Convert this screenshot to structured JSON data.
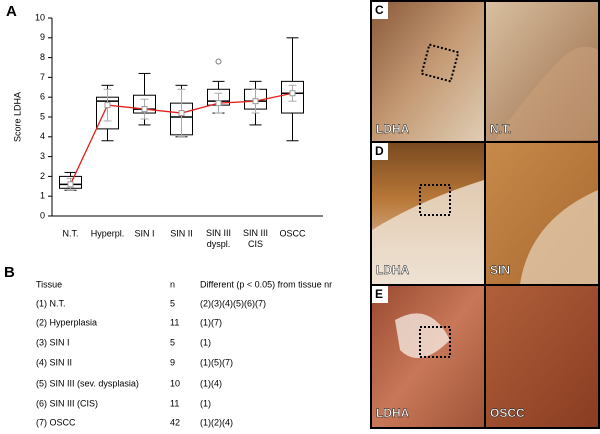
{
  "chart_data": {
    "type": "box",
    "panel": "A",
    "y_label": "Score LDHA",
    "categories": [
      "N.T.",
      "Hyperpl.",
      "SIN I",
      "SIN II",
      "SIN III\ndyspl.",
      "SIN III\nCIS",
      "OSCC"
    ],
    "min": [
      1.3,
      3.8,
      4.6,
      4.0,
      5.2,
      4.6,
      3.8
    ],
    "q1": [
      1.4,
      4.4,
      5.2,
      4.1,
      5.6,
      5.4,
      5.2
    ],
    "median": [
      1.6,
      5.8,
      5.4,
      5.0,
      5.8,
      5.8,
      6.2
    ],
    "q3": [
      2.0,
      6.0,
      6.1,
      5.7,
      6.4,
      6.4,
      6.8
    ],
    "max": [
      2.2,
      6.6,
      7.2,
      6.6,
      6.8,
      6.8,
      9.0
    ],
    "mean": [
      1.6,
      5.6,
      5.4,
      5.2,
      5.7,
      5.8,
      6.2
    ],
    "mean_error": [
      0.3,
      0.8,
      0.5,
      1.2,
      0.5,
      0.6,
      0.4
    ],
    "outliers": [
      [],
      [],
      [],
      [],
      [
        7.8
      ],
      [],
      []
    ],
    "mean_color": "#e0201c",
    "ylim": [
      0,
      10
    ],
    "yticks": [
      0,
      1,
      2,
      3,
      4,
      5,
      6,
      7,
      8,
      9,
      10
    ]
  },
  "table": {
    "label": "B",
    "header": [
      "Tissue",
      "n",
      "Different (p < 0.05) from tissue nr"
    ],
    "rows": [
      [
        "(1) N.T.",
        "5",
        "(2)(3)(4)(5)(6)(7)"
      ],
      [
        "(2) Hyperplasia",
        "11",
        "(1)(7)"
      ],
      [
        "(3) SIN I",
        "5",
        "(1)"
      ],
      [
        "(4) SIN II",
        "9",
        "(1)(5)(7)"
      ],
      [
        "(5) SIN III (sev. dysplasia)",
        "10",
        "(1)(4)"
      ],
      [
        "(6) SIN III (CIS)",
        "11",
        "(1)"
      ],
      [
        "(7) OSCC",
        "42",
        "(1)(2)(4)"
      ]
    ]
  },
  "images": [
    {
      "label": "C",
      "left": "LDHA",
      "right": "N.T."
    },
    {
      "label": "D",
      "left": "LDHA",
      "right": "SIN"
    },
    {
      "label": "E",
      "left": "LDHA",
      "right": "OSCC"
    }
  ]
}
